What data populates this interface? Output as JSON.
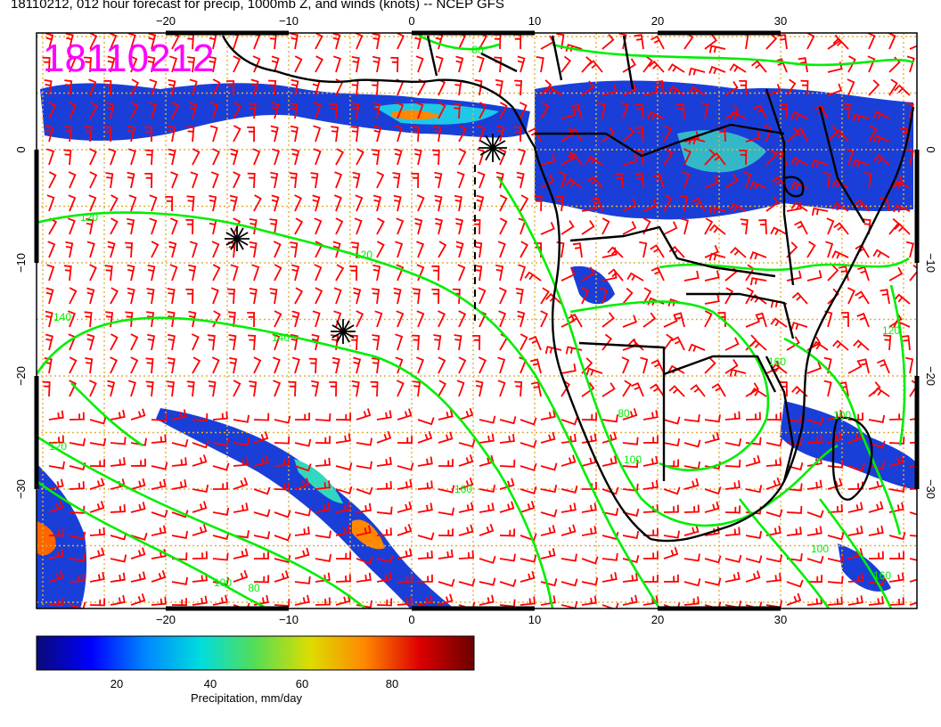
{
  "title": "18110212, 012 hour forecast for precip, 1000mb Z, and winds (knots) -- NCEP GFS",
  "stamp": "18110212",
  "stamp_color": "#ff00ff",
  "axes": {
    "lon_ticks": [
      -20,
      -10,
      0,
      10,
      20,
      30
    ],
    "lat_ticks": [
      0,
      -10,
      -20,
      -30
    ]
  },
  "contours": {
    "color": "#00ee00",
    "labels": [
      "80",
      "120",
      "120",
      "140",
      "140",
      "120",
      "100",
      "160",
      "80",
      "80",
      "100",
      "160",
      "100",
      "100",
      "120",
      "160"
    ]
  },
  "wind_barb_color": "#ff0000",
  "coastline_color": "#000000",
  "gridline_color": "#e0b040",
  "colorbar": {
    "label": "Precipitation, mm/day",
    "ticks": [
      "20",
      "40",
      "60",
      "80"
    ],
    "colors": [
      "#0a0a78",
      "#0000ff",
      "#0088ff",
      "#00dddd",
      "#55dd55",
      "#dddd00",
      "#ff8800",
      "#dd0000",
      "#6a0000"
    ]
  }
}
